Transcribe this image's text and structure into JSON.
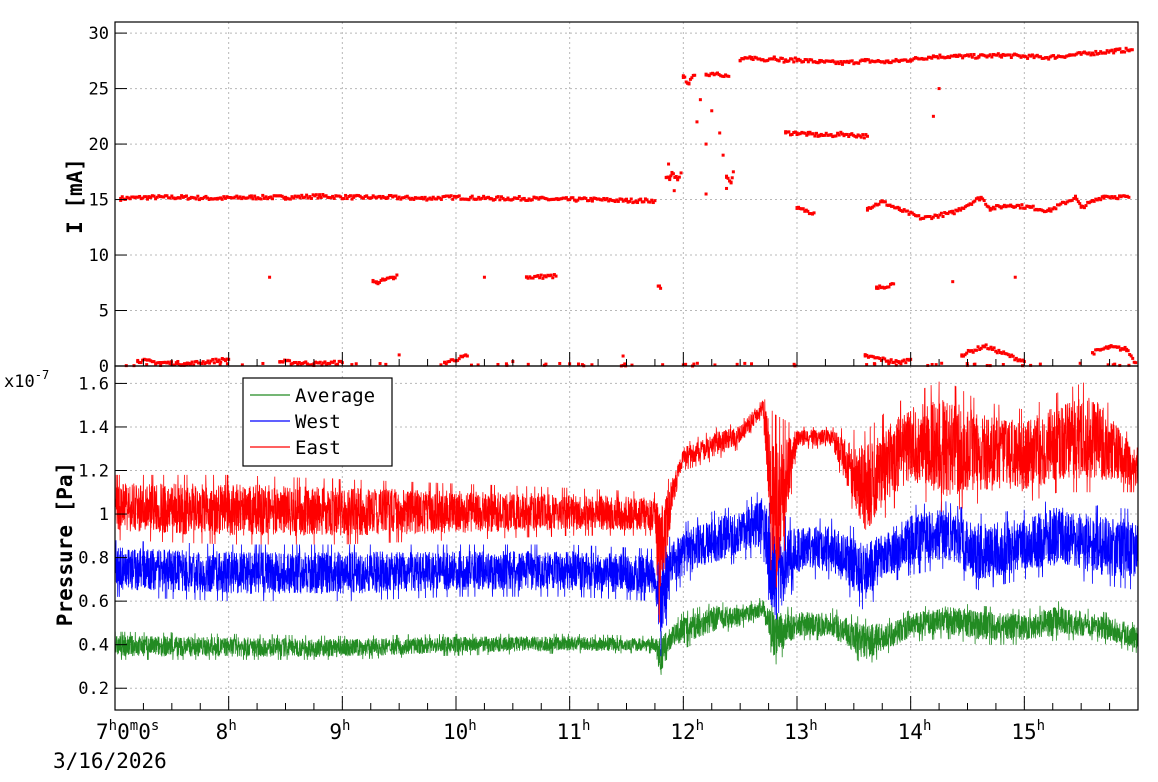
{
  "chart_data": [
    {
      "type": "scatter",
      "ylabel": "I [mA]",
      "ylim": [
        0,
        31
      ],
      "yticks": [
        0,
        5,
        10,
        15,
        20,
        25,
        30
      ],
      "xlim_hours": [
        7,
        16
      ],
      "grid": true,
      "color": "#ff0000",
      "series": [
        {
          "name": "",
          "points_hours_mA": [
            [
              7.05,
              15.1
            ],
            [
              7.3,
              15.2
            ],
            [
              7.6,
              15.2
            ],
            [
              7.9,
              15.1
            ],
            [
              8.2,
              15.2
            ],
            [
              8.5,
              15.2
            ],
            [
              8.8,
              15.3
            ],
            [
              9.1,
              15.2
            ],
            [
              9.4,
              15.2
            ],
            [
              9.7,
              15.1
            ],
            [
              10.0,
              15.2
            ],
            [
              10.3,
              15.1
            ],
            [
              10.6,
              15.1
            ],
            [
              10.9,
              15.0
            ],
            [
              11.2,
              15.0
            ],
            [
              11.5,
              14.9
            ],
            [
              11.75,
              14.9
            ],
            [
              8.36,
              8.0
            ],
            [
              9.27,
              7.6
            ],
            [
              9.3,
              7.5
            ],
            [
              9.45,
              8.0
            ],
            [
              9.48,
              8.2
            ],
            [
              10.25,
              8.0
            ],
            [
              10.62,
              8.0
            ],
            [
              10.88,
              8.1
            ],
            [
              11.78,
              7.2
            ],
            [
              11.8,
              7.0
            ],
            [
              11.85,
              17.0
            ],
            [
              11.88,
              16.8
            ],
            [
              11.9,
              17.3
            ],
            [
              11.95,
              16.9
            ],
            [
              11.98,
              17.4
            ],
            [
              11.87,
              18.2
            ],
            [
              11.92,
              15.8
            ],
            [
              12.0,
              26.0
            ],
            [
              12.05,
              25.5
            ],
            [
              12.1,
              26.2
            ],
            [
              12.15,
              24.0
            ],
            [
              12.2,
              26.3
            ],
            [
              12.3,
              26.4
            ],
            [
              12.4,
              26.1
            ],
            [
              12.12,
              22.0
            ],
            [
              12.2,
              20.0
            ],
            [
              12.25,
              23.0
            ],
            [
              12.32,
              21.0
            ],
            [
              12.35,
              19.0
            ],
            [
              12.38,
              17.0
            ],
            [
              12.42,
              16.5
            ],
            [
              12.44,
              17.5
            ],
            [
              12.38,
              16.0
            ],
            [
              12.2,
              15.5
            ],
            [
              12.5,
              27.5
            ],
            [
              12.6,
              27.8
            ],
            [
              12.7,
              27.6
            ],
            [
              12.8,
              27.8
            ],
            [
              12.9,
              27.5
            ],
            [
              13.0,
              27.6
            ],
            [
              13.2,
              27.4
            ],
            [
              13.4,
              27.3
            ],
            [
              13.6,
              27.5
            ],
            [
              13.8,
              27.4
            ],
            [
              14.0,
              27.6
            ],
            [
              14.2,
              27.9
            ],
            [
              14.4,
              27.9
            ],
            [
              14.6,
              27.9
            ],
            [
              14.8,
              28.0
            ],
            [
              15.0,
              27.9
            ],
            [
              15.2,
              27.8
            ],
            [
              15.4,
              28.0
            ],
            [
              15.6,
              28.2
            ],
            [
              15.8,
              28.4
            ],
            [
              15.95,
              28.5
            ],
            [
              12.9,
              21.0
            ],
            [
              13.0,
              21.0
            ],
            [
              13.1,
              20.9
            ],
            [
              13.2,
              20.8
            ],
            [
              13.3,
              20.8
            ],
            [
              13.4,
              20.9
            ],
            [
              13.62,
              20.7
            ],
            [
              13.0,
              14.2
            ],
            [
              13.15,
              13.8
            ],
            [
              13.62,
              14.2
            ],
            [
              13.75,
              14.8
            ],
            [
              13.9,
              14.1
            ],
            [
              14.1,
              13.3
            ],
            [
              14.37,
              13.8
            ],
            [
              14.62,
              15.2
            ],
            [
              14.7,
              14.2
            ],
            [
              14.88,
              14.5
            ],
            [
              15.05,
              14.3
            ],
            [
              15.22,
              14.0
            ],
            [
              15.45,
              15.2
            ],
            [
              15.5,
              14.3
            ],
            [
              15.7,
              15.3
            ],
            [
              15.92,
              15.2
            ],
            [
              13.7,
              7.0
            ],
            [
              13.85,
              7.4
            ],
            [
              14.37,
              7.6
            ],
            [
              14.92,
              8.0
            ],
            [
              14.2,
              22.5
            ],
            [
              14.25,
              25.0
            ],
            [
              7.2,
              0.5
            ],
            [
              7.4,
              0.3
            ],
            [
              7.65,
              0.2
            ],
            [
              8.0,
              0.6
            ],
            [
              8.45,
              0.4
            ],
            [
              8.75,
              0.2
            ],
            [
              9.0,
              0.3
            ],
            [
              9.5,
              1.0
            ],
            [
              9.9,
              0.3
            ],
            [
              10.1,
              0.9
            ],
            [
              10.5,
              0.4
            ],
            [
              11.0,
              0.2
            ],
            [
              11.47,
              0.9
            ],
            [
              12.0,
              0.1
            ],
            [
              12.6,
              0.2
            ],
            [
              13.6,
              0.9
            ],
            [
              13.9,
              0.3
            ],
            [
              14.0,
              0.6
            ],
            [
              14.45,
              1.0
            ],
            [
              14.65,
              1.8
            ],
            [
              15.0,
              0.4
            ],
            [
              15.6,
              1.2
            ],
            [
              15.75,
              1.7
            ],
            [
              15.9,
              1.5
            ],
            [
              15.98,
              0.3
            ]
          ]
        }
      ]
    },
    {
      "type": "line",
      "ylabel": "Pressure [Pa]",
      "exponent_label": "x10",
      "exponent_value": "-7",
      "ylim": [
        0.1,
        1.68
      ],
      "yticks": [
        0.2,
        0.4,
        0.6,
        0.8,
        1.0,
        1.2,
        1.4,
        1.6
      ],
      "ytick_labels": [
        "0.2",
        "0.4",
        "0.6",
        "0.8",
        "1",
        "1.2",
        "1.4",
        "1.6"
      ],
      "xlim_hours": [
        7,
        16
      ],
      "grid": true,
      "legend_position": "top-left",
      "series": [
        {
          "name": "Average",
          "color": "#228B22",
          "hours": [
            7,
            8,
            9,
            10,
            11,
            11.75,
            11.8,
            11.9,
            12.0,
            12.3,
            12.5,
            12.7,
            12.8,
            13.0,
            13.3,
            13.6,
            13.8,
            14.0,
            14.3,
            14.6,
            15.0,
            15.3,
            15.6,
            16.0
          ],
          "low": [
            0.33,
            0.33,
            0.33,
            0.35,
            0.36,
            0.36,
            0.22,
            0.38,
            0.38,
            0.45,
            0.47,
            0.52,
            0.3,
            0.42,
            0.42,
            0.3,
            0.36,
            0.41,
            0.43,
            0.4,
            0.4,
            0.42,
            0.42,
            0.36
          ],
          "high": [
            0.46,
            0.45,
            0.44,
            0.45,
            0.45,
            0.44,
            0.46,
            0.5,
            0.55,
            0.6,
            0.58,
            0.62,
            0.58,
            0.57,
            0.57,
            0.52,
            0.52,
            0.56,
            0.6,
            0.58,
            0.56,
            0.6,
            0.56,
            0.52
          ]
        },
        {
          "name": "West",
          "color": "#0000ff",
          "hours": [
            7,
            8,
            9,
            10,
            11,
            11.75,
            11.8,
            11.9,
            12.0,
            12.3,
            12.5,
            12.7,
            12.8,
            13.0,
            13.3,
            13.6,
            13.8,
            14.0,
            14.3,
            14.6,
            15.0,
            15.3,
            15.6,
            16.0
          ],
          "low": [
            0.62,
            0.6,
            0.6,
            0.62,
            0.62,
            0.6,
            0.34,
            0.62,
            0.68,
            0.75,
            0.78,
            0.82,
            0.4,
            0.7,
            0.7,
            0.55,
            0.68,
            0.72,
            0.75,
            0.65,
            0.7,
            0.72,
            0.68,
            0.65
          ],
          "high": [
            0.88,
            0.86,
            0.86,
            0.86,
            0.86,
            0.84,
            0.88,
            0.9,
            0.96,
            1.02,
            1.04,
            1.12,
            1.0,
            0.98,
            0.98,
            0.92,
            0.96,
            1.04,
            1.06,
            1.0,
            1.02,
            1.08,
            1.04,
            1.02
          ]
        },
        {
          "name": "East",
          "color": "#ff0000",
          "hours": [
            7,
            8,
            9,
            10,
            11,
            11.75,
            11.8,
            11.9,
            12.0,
            12.3,
            12.5,
            12.7,
            12.8,
            13.0,
            13.3,
            13.6,
            13.8,
            14.0,
            14.3,
            14.6,
            15.0,
            15.3,
            15.6,
            16.0
          ],
          "low": [
            0.88,
            0.86,
            0.86,
            0.88,
            0.9,
            0.9,
            0.4,
            1.0,
            1.2,
            1.25,
            1.3,
            1.45,
            0.45,
            1.3,
            1.3,
            0.85,
            1.0,
            1.1,
            1.0,
            1.05,
            1.05,
            1.1,
            1.1,
            1.1
          ],
          "high": [
            1.18,
            1.18,
            1.16,
            1.14,
            1.12,
            1.1,
            1.12,
            1.18,
            1.32,
            1.4,
            1.42,
            1.54,
            1.46,
            1.4,
            1.4,
            1.38,
            1.48,
            1.55,
            1.62,
            1.52,
            1.48,
            1.56,
            1.62,
            1.3
          ]
        }
      ]
    }
  ],
  "x_axis": {
    "tick_hours": [
      7,
      8,
      9,
      10,
      11,
      12,
      13,
      14,
      15
    ],
    "first_label": {
      "h": "7",
      "h_unit": "h",
      "m": "0",
      "m_unit": "m",
      "s": "0",
      "s_unit": "s"
    },
    "hour_labels": [
      "8",
      "9",
      "10",
      "11",
      "12",
      "13",
      "14",
      "15"
    ],
    "hour_unit": "h",
    "date": "3/16/2026"
  }
}
